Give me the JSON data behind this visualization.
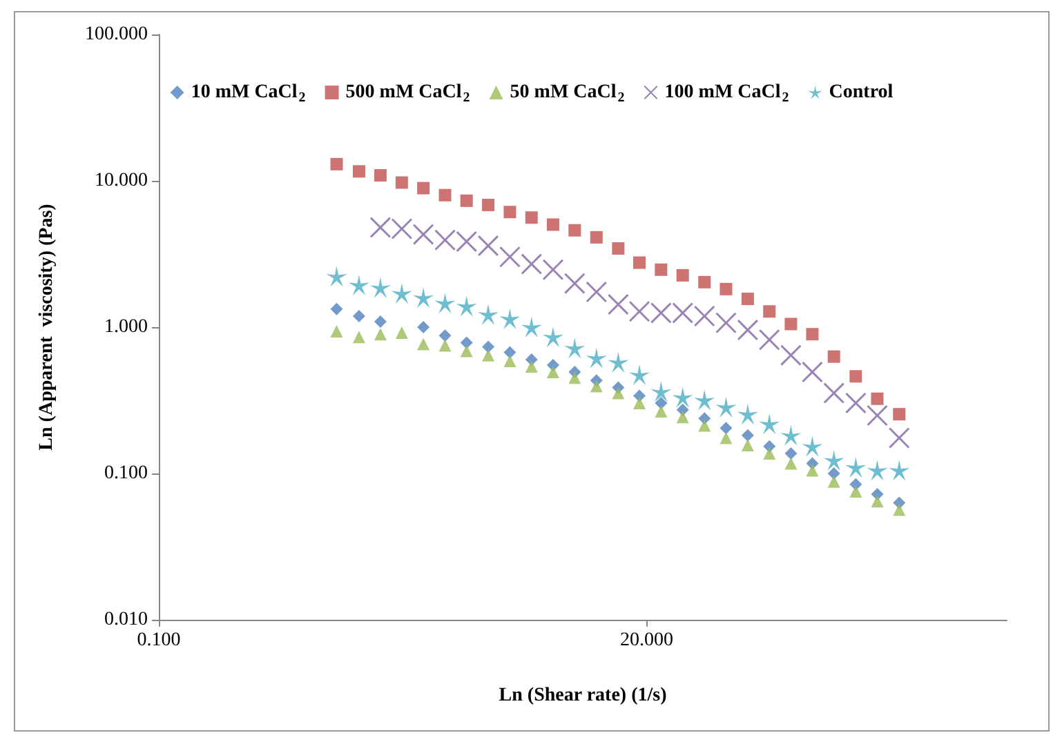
{
  "chart_data": {
    "type": "scatter",
    "xlabel": "Ln (Shear rate) (1/s)",
    "ylabel": "Ln (Apparent  viscosity) (Pas)",
    "log": "xy",
    "grid": false,
    "legend": "top",
    "xlim": [
      0.1,
      1000
    ],
    "xticks": [
      {
        "value": 0.1,
        "label": "0.100"
      },
      {
        "value": 20,
        "label": "20.000"
      }
    ],
    "ylim": [
      0.01,
      100
    ],
    "yticks": [
      {
        "value": 0.01,
        "label": "0.010"
      },
      {
        "value": 0.1,
        "label": "0.100"
      },
      {
        "value": 1,
        "label": "1.000"
      },
      {
        "value": 10,
        "label": "10.000"
      },
      {
        "value": 100,
        "label": "100.000"
      }
    ],
    "x": [
      0.69,
      0.88,
      1.11,
      1.4,
      1.77,
      2.24,
      2.83,
      3.58,
      4.53,
      5.73,
      7.24,
      9.16,
      11.6,
      14.7,
      18.5,
      23.4,
      29.6,
      37.5,
      47.4,
      60.0,
      75.9,
      95.9,
      121,
      153,
      194,
      245,
      311
    ],
    "series": [
      {
        "name": "10 mM CaCl$_{2}$",
        "color": "#4f81bd",
        "marker": "diamond",
        "values": [
          1.33,
          1.19,
          1.09,
          null,
          1.0,
          0.876,
          0.784,
          0.734,
          0.672,
          0.601,
          0.551,
          0.493,
          0.432,
          0.387,
          0.339,
          0.303,
          0.272,
          0.238,
          0.204,
          0.182,
          0.153,
          0.137,
          0.117,
          0.1,
          0.0842,
          0.0721,
          0.0631
        ]
      },
      {
        "name": "500 mM CaCl$_{2}$",
        "color": "#c0504d",
        "marker": "square",
        "values": [
          13.0,
          11.6,
          10.9,
          9.73,
          8.91,
          7.98,
          7.31,
          6.84,
          6.12,
          5.61,
          5.02,
          4.59,
          4.11,
          3.45,
          2.76,
          2.47,
          2.26,
          2.03,
          1.82,
          1.56,
          1.28,
          1.05,
          0.895,
          0.629,
          0.461,
          0.324,
          0.254
        ]
      },
      {
        "name": "50 mM CaCl$_{2}$",
        "color": "#9bbb59",
        "marker": "triangle",
        "values": [
          0.936,
          0.857,
          0.895,
          0.916,
          0.767,
          0.75,
          0.687,
          0.643,
          0.588,
          0.539,
          0.493,
          0.451,
          0.395,
          0.354,
          0.303,
          0.266,
          0.243,
          0.213,
          0.175,
          0.156,
          0.137,
          0.117,
          0.105,
          0.088,
          0.0754,
          0.0646,
          0.0565
        ]
      },
      {
        "name": "100 mM CaCl$_{2}$",
        "color": "#8064a2",
        "marker": "cross",
        "values": [
          null,
          null,
          4.8,
          4.7,
          4.3,
          3.94,
          3.85,
          3.6,
          3.02,
          2.7,
          2.47,
          1.99,
          1.74,
          1.43,
          1.28,
          1.25,
          1.25,
          1.19,
          1.07,
          0.957,
          0.82,
          0.643,
          0.493,
          0.354,
          0.303,
          0.249,
          0.175
        ]
      },
      {
        "name": "Control",
        "color": "#4bacc6",
        "marker": "star",
        "values": [
          2.22,
          1.94,
          1.86,
          1.7,
          1.59,
          1.46,
          1.39,
          1.22,
          1.14,
          1.0,
          0.857,
          0.718,
          0.615,
          0.575,
          0.472,
          0.362,
          0.331,
          0.317,
          0.284,
          0.254,
          0.218,
          0.182,
          0.153,
          0.123,
          0.11,
          0.105,
          0.105
        ]
      }
    ]
  }
}
